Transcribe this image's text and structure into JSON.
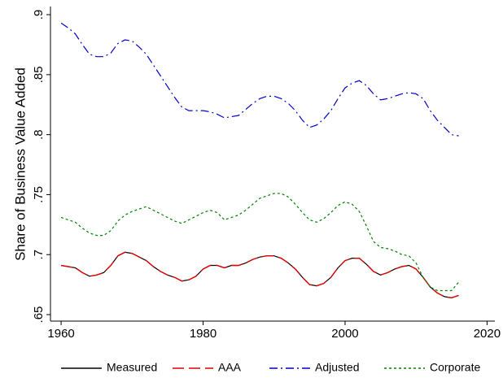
{
  "chart_data": {
    "type": "line",
    "y_label": "Share of Business Value Added",
    "x": [
      1960,
      1961,
      1962,
      1963,
      1964,
      1965,
      1966,
      1967,
      1968,
      1969,
      1970,
      1971,
      1972,
      1973,
      1974,
      1975,
      1976,
      1977,
      1978,
      1979,
      1980,
      1981,
      1982,
      1983,
      1984,
      1985,
      1986,
      1987,
      1988,
      1989,
      1990,
      1991,
      1992,
      1993,
      1994,
      1995,
      1996,
      1997,
      1998,
      1999,
      2000,
      2001,
      2002,
      2003,
      2004,
      2005,
      2006,
      2007,
      2008,
      2009,
      2010,
      2011,
      2012,
      2013,
      2014,
      2015,
      2016
    ],
    "series": [
      {
        "name": "Measured",
        "color": "#000000",
        "values": [
          0.691,
          0.69,
          0.689,
          0.685,
          0.682,
          0.683,
          0.685,
          0.691,
          0.699,
          0.702,
          0.701,
          0.698,
          0.695,
          0.69,
          0.686,
          0.683,
          0.681,
          0.678,
          0.679,
          0.682,
          0.688,
          0.691,
          0.691,
          0.689,
          0.691,
          0.691,
          0.693,
          0.696,
          0.698,
          0.699,
          0.699,
          0.697,
          0.693,
          0.688,
          0.681,
          0.675,
          0.674,
          0.676,
          0.681,
          0.689,
          0.695,
          0.697,
          0.697,
          0.692,
          0.686,
          0.683,
          0.685,
          0.688,
          0.69,
          0.691,
          0.688,
          0.681,
          0.673,
          0.668,
          0.665,
          0.664,
          0.666
        ]
      },
      {
        "name": "AAA",
        "color": "#e00000",
        "values": [
          0.691,
          0.69,
          0.689,
          0.685,
          0.682,
          0.683,
          0.685,
          0.691,
          0.699,
          0.702,
          0.701,
          0.698,
          0.695,
          0.69,
          0.686,
          0.683,
          0.681,
          0.678,
          0.679,
          0.682,
          0.688,
          0.691,
          0.691,
          0.689,
          0.691,
          0.691,
          0.693,
          0.696,
          0.698,
          0.699,
          0.699,
          0.697,
          0.693,
          0.688,
          0.681,
          0.675,
          0.674,
          0.676,
          0.681,
          0.689,
          0.695,
          0.697,
          0.697,
          0.692,
          0.686,
          0.683,
          0.685,
          0.688,
          0.69,
          0.691,
          0.688,
          0.681,
          0.673,
          0.668,
          0.665,
          0.664,
          0.666
        ]
      },
      {
        "name": "Adjusted",
        "color": "#0000cc",
        "values": [
          0.893,
          0.889,
          0.884,
          0.875,
          0.867,
          0.865,
          0.865,
          0.868,
          0.876,
          0.879,
          0.878,
          0.873,
          0.867,
          0.858,
          0.849,
          0.84,
          0.831,
          0.823,
          0.82,
          0.82,
          0.82,
          0.819,
          0.817,
          0.814,
          0.815,
          0.816,
          0.821,
          0.826,
          0.83,
          0.832,
          0.832,
          0.83,
          0.826,
          0.82,
          0.812,
          0.806,
          0.808,
          0.813,
          0.82,
          0.83,
          0.839,
          0.843,
          0.845,
          0.841,
          0.834,
          0.829,
          0.83,
          0.832,
          0.834,
          0.835,
          0.834,
          0.83,
          0.82,
          0.812,
          0.806,
          0.8,
          0.799
        ]
      },
      {
        "name": "Corporate",
        "color": "#008000",
        "values": [
          0.731,
          0.729,
          0.727,
          0.722,
          0.718,
          0.716,
          0.716,
          0.72,
          0.728,
          0.733,
          0.736,
          0.738,
          0.74,
          0.737,
          0.734,
          0.731,
          0.728,
          0.726,
          0.729,
          0.732,
          0.735,
          0.737,
          0.735,
          0.729,
          0.731,
          0.733,
          0.737,
          0.742,
          0.747,
          0.749,
          0.751,
          0.751,
          0.748,
          0.742,
          0.735,
          0.729,
          0.727,
          0.73,
          0.735,
          0.741,
          0.744,
          0.742,
          0.736,
          0.724,
          0.711,
          0.706,
          0.705,
          0.703,
          0.7,
          0.699,
          0.693,
          0.681,
          0.673,
          0.67,
          0.67,
          0.67,
          0.677
        ]
      }
    ],
    "xlim": [
      1958.5,
      2021.1
    ],
    "ylim": [
      0.6446,
      0.9068
    ],
    "xticks": [
      1960,
      1980,
      2000,
      2020
    ],
    "yticks": [
      {
        "value": 0.65,
        "label": ".65"
      },
      {
        "value": 0.7,
        "label": ".7"
      },
      {
        "value": 0.75,
        "label": ".75"
      },
      {
        "value": 0.8,
        "label": ".8"
      },
      {
        "value": 0.85,
        "label": ".85"
      },
      {
        "value": 0.9,
        "label": ".9"
      }
    ],
    "legend": "bottom"
  }
}
